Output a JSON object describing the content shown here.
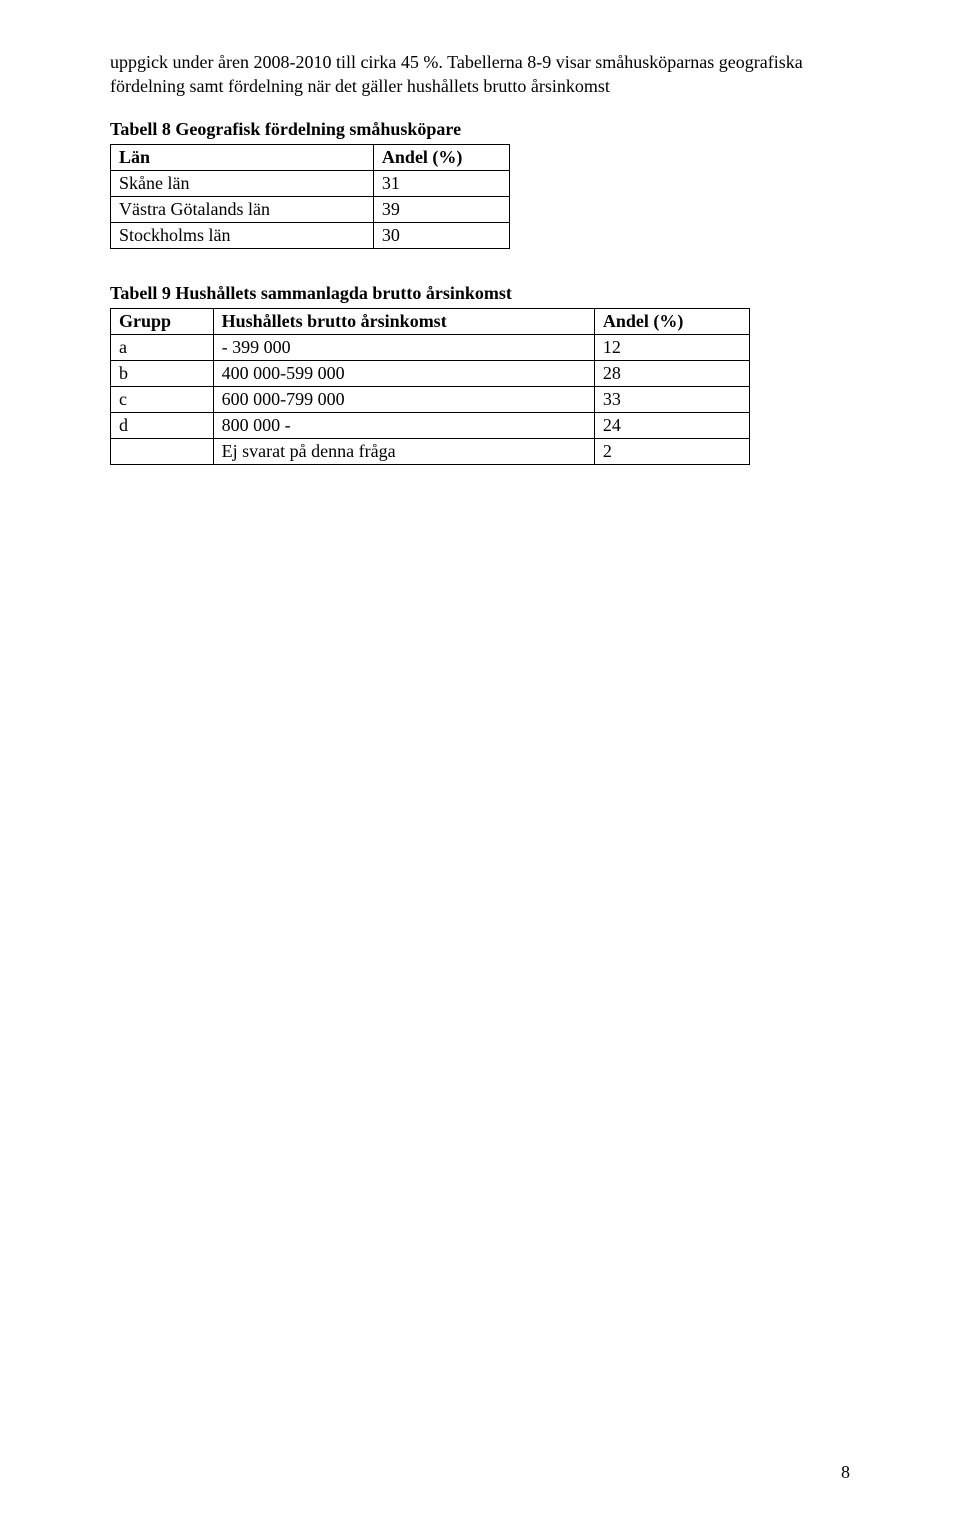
{
  "paragraph": "uppgick under åren 2008-2010 till cirka 45 %. Tabellerna 8-9 visar småhusköparnas geografiska fördelning samt fördelning när det gäller hushållets brutto årsinkomst",
  "table1": {
    "caption": "Tabell 8 Geografisk fördelning småhusköpare",
    "headers": [
      "Län",
      "Andel (%)"
    ],
    "rows": [
      [
        "Skåne län",
        "31"
      ],
      [
        "Västra Götalands län",
        "39"
      ],
      [
        "Stockholms län",
        "30"
      ]
    ]
  },
  "table2": {
    "caption": "Tabell 9 Hushållets sammanlagda brutto årsinkomst",
    "headers": [
      "Grupp",
      "Hushållets brutto årsinkomst",
      "Andel (%)"
    ],
    "rows": [
      [
        "a",
        "- 399 000",
        "12"
      ],
      [
        "b",
        "400 000-599 000",
        "28"
      ],
      [
        "c",
        "600 000-799 000",
        "33"
      ],
      [
        "d",
        "800 000 -",
        "24"
      ],
      [
        "",
        "Ej svarat på denna fråga",
        "2"
      ]
    ]
  },
  "pageNumber": "8"
}
